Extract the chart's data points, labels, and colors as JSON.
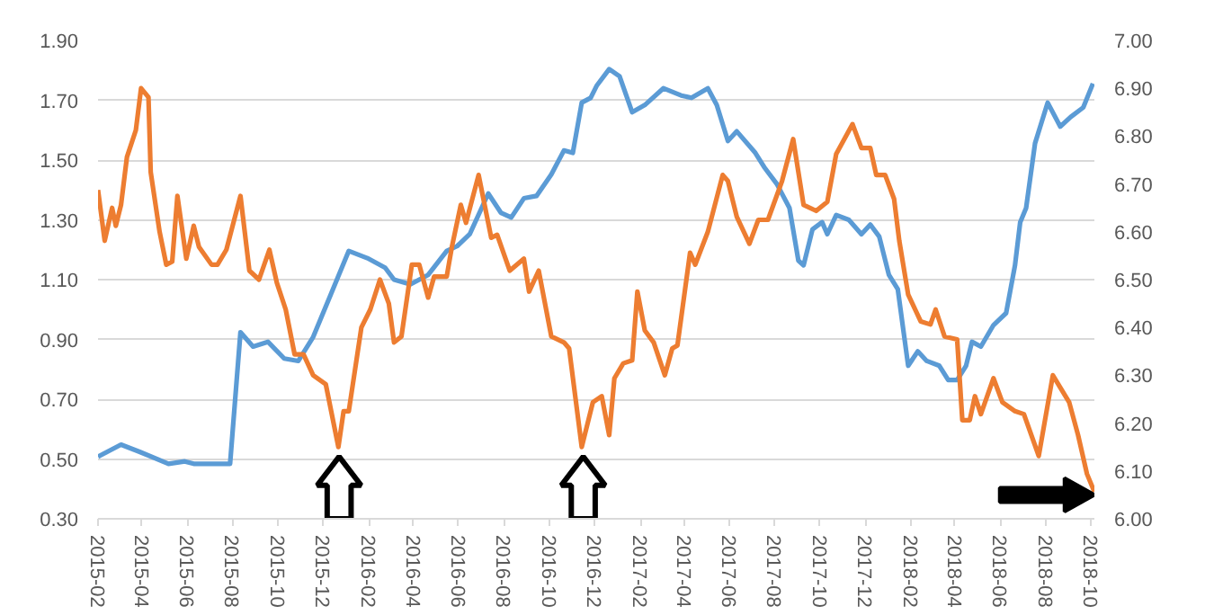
{
  "chart_data": {
    "type": "line",
    "grid": "y",
    "line_style": "solid",
    "marker": "none",
    "xlim": [
      "2015-02-01",
      "2018-10-06"
    ],
    "xticks": [
      "2015-02",
      "2015-04",
      "2015-06",
      "2015-08",
      "2015-10",
      "2015-12",
      "2016-02",
      "2016-04",
      "2016-06",
      "2016-08",
      "2016-10",
      "2016-12",
      "2017-02",
      "2017-04",
      "2017-06",
      "2017-08",
      "2017-10",
      "2017-12",
      "2018-02",
      "2018-04",
      "2018-06",
      "2018-08",
      "2018-10"
    ],
    "ylim": [
      0.3,
      1.9
    ],
    "yticks": [
      {
        "value": 0.3,
        "label": "0.30"
      },
      {
        "value": 0.5,
        "label": "0.50"
      },
      {
        "value": 0.7,
        "label": "0.70"
      },
      {
        "value": 0.9,
        "label": "0.90"
      },
      {
        "value": 1.1,
        "label": "1.10"
      },
      {
        "value": 1.3,
        "label": "1.30"
      },
      {
        "value": 1.5,
        "label": "1.50"
      },
      {
        "value": 1.7,
        "label": "1.70"
      },
      {
        "value": 1.9,
        "label": "1.90"
      }
    ],
    "y2lim": [
      6.0,
      7.0
    ],
    "y2ticks": [
      {
        "value": 6.0,
        "label": "6.00"
      },
      {
        "value": 6.1,
        "label": "6.10"
      },
      {
        "value": 6.2,
        "label": "6.20"
      },
      {
        "value": 6.3,
        "label": "6.30"
      },
      {
        "value": 6.4,
        "label": "6.40"
      },
      {
        "value": 6.5,
        "label": "6.50"
      },
      {
        "value": 6.6,
        "label": "6.60"
      },
      {
        "value": 6.7,
        "label": "6.70"
      },
      {
        "value": 6.8,
        "label": "6.80"
      },
      {
        "value": 6.9,
        "label": "6.90"
      },
      {
        "value": 7.0,
        "label": "7.00"
      }
    ],
    "series": [
      {
        "color": "#5b9bd5",
        "axis": "y2",
        "x": [
          "2015-02-01",
          "2015-03-04",
          "2015-03-29",
          "2015-05-07",
          "2015-05-29",
          "2015-06-10",
          "2015-07-29",
          "2015-08-12",
          "2015-08-29",
          "2015-09-18",
          "2015-10-10",
          "2015-10-29",
          "2015-11-18",
          "2015-12-12",
          "2016-01-05",
          "2016-01-30",
          "2016-02-23",
          "2016-03-06",
          "2016-03-28",
          "2016-04-21",
          "2016-05-16",
          "2016-05-30",
          "2016-06-16",
          "2016-07-11",
          "2016-07-28",
          "2016-08-11",
          "2016-08-28",
          "2016-09-14",
          "2016-10-04",
          "2016-10-21",
          "2016-11-02",
          "2016-11-14",
          "2016-11-26",
          "2016-12-04",
          "2016-12-21",
          "2017-01-04",
          "2017-01-21",
          "2017-02-07",
          "2017-03-04",
          "2017-03-28",
          "2017-04-11",
          "2017-05-03",
          "2017-05-15",
          "2017-05-30",
          "2017-06-11",
          "2017-07-06",
          "2017-07-18",
          "2017-08-04",
          "2017-08-21",
          "2017-09-02",
          "2017-09-09",
          "2017-09-21",
          "2017-10-04",
          "2017-10-11",
          "2017-10-23",
          "2017-11-09",
          "2017-11-26",
          "2017-12-08",
          "2017-12-20",
          "2018-01-02",
          "2018-01-14",
          "2018-01-28",
          "2018-02-10",
          "2018-02-22",
          "2018-03-11",
          "2018-03-23",
          "2018-04-04",
          "2018-04-16",
          "2018-04-24",
          "2018-05-06",
          "2018-05-23",
          "2018-06-09",
          "2018-06-21",
          "2018-06-28",
          "2018-07-06",
          "2018-07-18",
          "2018-08-04",
          "2018-08-21",
          "2018-09-04",
          "2018-09-21",
          "2018-10-04"
        ],
        "values": [
          6.13,
          6.155,
          6.14,
          6.115,
          6.12,
          6.115,
          6.115,
          6.39,
          6.36,
          6.37,
          6.335,
          6.33,
          6.38,
          6.47,
          6.56,
          6.545,
          6.525,
          6.5,
          6.49,
          6.51,
          6.56,
          6.57,
          6.595,
          6.68,
          6.64,
          6.63,
          6.67,
          6.675,
          6.72,
          6.77,
          6.765,
          6.87,
          6.88,
          6.905,
          6.94,
          6.925,
          6.85,
          6.865,
          6.9,
          6.885,
          6.88,
          6.9,
          6.865,
          6.79,
          6.81,
          6.765,
          6.735,
          6.7,
          6.65,
          6.54,
          6.53,
          6.605,
          6.62,
          6.595,
          6.635,
          6.625,
          6.595,
          6.615,
          6.59,
          6.51,
          6.48,
          6.32,
          6.35,
          6.33,
          6.32,
          6.29,
          6.29,
          6.32,
          6.37,
          6.36,
          6.405,
          6.43,
          6.53,
          6.62,
          6.65,
          6.785,
          6.87,
          6.82,
          6.84,
          6.86,
          6.91
        ]
      },
      {
        "color": "#ed7d31",
        "x": [
          "2015-02-01",
          "2015-02-10",
          "2015-02-20",
          "2015-02-25",
          "2015-03-04",
          "2015-03-12",
          "2015-03-24",
          "2015-03-31",
          "2015-04-10",
          "2015-04-13",
          "2015-04-25",
          "2015-05-04",
          "2015-05-12",
          "2015-05-19",
          "2015-05-31",
          "2015-06-10",
          "2015-06-17",
          "2015-07-04",
          "2015-07-12",
          "2015-07-24",
          "2015-08-12",
          "2015-08-24",
          "2015-09-06",
          "2015-09-20",
          "2015-09-30",
          "2015-10-12",
          "2015-10-24",
          "2015-11-05",
          "2015-11-18",
          "2015-12-05",
          "2015-12-22",
          "2015-12-29",
          "2016-01-05",
          "2016-01-22",
          "2016-02-03",
          "2016-02-16",
          "2016-02-28",
          "2016-03-06",
          "2016-03-16",
          "2016-03-30",
          "2016-04-09",
          "2016-04-21",
          "2016-04-29",
          "2016-05-16",
          "2016-05-23",
          "2016-06-04",
          "2016-06-11",
          "2016-06-28",
          "2016-07-15",
          "2016-07-23",
          "2016-08-09",
          "2016-08-28",
          "2016-09-04",
          "2016-09-17",
          "2016-10-04",
          "2016-10-21",
          "2016-10-28",
          "2016-11-14",
          "2016-11-29",
          "2016-12-11",
          "2016-12-21",
          "2016-12-28",
          "2017-01-09",
          "2017-01-21",
          "2017-01-28",
          "2017-02-07",
          "2017-02-19",
          "2017-03-06",
          "2017-03-16",
          "2017-03-23",
          "2017-04-09",
          "2017-04-16",
          "2017-05-03",
          "2017-05-23",
          "2017-05-30",
          "2017-06-11",
          "2017-06-28",
          "2017-07-10",
          "2017-07-23",
          "2017-08-11",
          "2017-08-26",
          "2017-09-09",
          "2017-09-26",
          "2017-10-11",
          "2017-10-23",
          "2017-11-14",
          "2017-11-26",
          "2017-12-08",
          "2017-12-16",
          "2017-12-28",
          "2018-01-09",
          "2018-01-16",
          "2018-01-28",
          "2018-02-14",
          "2018-02-27",
          "2018-03-06",
          "2018-03-18",
          "2018-04-04",
          "2018-04-11",
          "2018-04-21",
          "2018-04-28",
          "2018-05-06",
          "2018-05-23",
          "2018-06-04",
          "2018-06-21",
          "2018-07-03",
          "2018-07-23",
          "2018-08-11",
          "2018-09-02",
          "2018-09-14",
          "2018-09-26",
          "2018-10-06"
        ],
        "values": [
          1.4,
          1.23,
          1.34,
          1.28,
          1.35,
          1.51,
          1.6,
          1.74,
          1.71,
          1.46,
          1.26,
          1.15,
          1.16,
          1.38,
          1.17,
          1.28,
          1.21,
          1.15,
          1.15,
          1.2,
          1.38,
          1.13,
          1.1,
          1.2,
          1.09,
          1.0,
          0.85,
          0.85,
          0.78,
          0.75,
          0.54,
          0.66,
          0.66,
          0.94,
          1.0,
          1.1,
          1.02,
          0.89,
          0.91,
          1.15,
          1.15,
          1.04,
          1.11,
          1.11,
          1.21,
          1.35,
          1.29,
          1.45,
          1.24,
          1.25,
          1.13,
          1.17,
          1.06,
          1.13,
          0.91,
          0.89,
          0.87,
          0.54,
          0.69,
          0.71,
          0.58,
          0.77,
          0.82,
          0.83,
          1.06,
          0.93,
          0.89,
          0.78,
          0.87,
          0.88,
          1.19,
          1.15,
          1.26,
          1.45,
          1.43,
          1.31,
          1.22,
          1.3,
          1.3,
          1.43,
          1.57,
          1.35,
          1.33,
          1.36,
          1.52,
          1.62,
          1.54,
          1.54,
          1.45,
          1.45,
          1.37,
          1.23,
          1.05,
          0.96,
          0.95,
          1.0,
          0.91,
          0.9,
          0.63,
          0.63,
          0.71,
          0.65,
          0.77,
          0.69,
          0.66,
          0.65,
          0.51,
          0.78,
          0.69,
          0.58,
          0.45,
          0.39
        ]
      }
    ]
  }
}
